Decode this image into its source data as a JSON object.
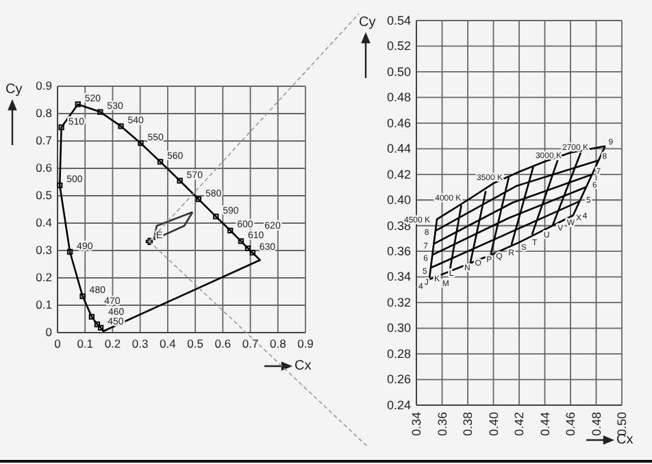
{
  "chart_data": [
    {
      "type": "line",
      "xlabel": "Cx",
      "ylabel": "Cy",
      "xlim": [
        0,
        0.9
      ],
      "ylim": [
        0,
        0.9
      ],
      "xticks": [
        0,
        0.1,
        0.2,
        0.3,
        0.4,
        0.5,
        0.6,
        0.7,
        0.8,
        0.9
      ],
      "yticks": [
        0,
        0.1,
        0.2,
        0.3,
        0.4,
        0.5,
        0.6,
        0.7,
        0.8,
        0.9
      ],
      "grid": true,
      "series": [
        {
          "color": "#000000",
          "marker": "square",
          "x": [
            0.157,
            0.144,
            0.124,
            0.091,
            0.045,
            0.008,
            0.014,
            0.074,
            0.155,
            0.23,
            0.302,
            0.373,
            0.444,
            0.512,
            0.575,
            0.627,
            0.666,
            0.691,
            0.708
          ],
          "values": [
            0.018,
            0.03,
            0.058,
            0.133,
            0.295,
            0.538,
            0.75,
            0.834,
            0.806,
            0.754,
            0.692,
            0.624,
            0.555,
            0.487,
            0.424,
            0.373,
            0.334,
            0.308,
            0.292
          ]
        },
        {
          "color": "#000000",
          "marker": "none",
          "x": [
            0.708,
            0.735,
            0.166,
            0.157
          ],
          "values": [
            0.292,
            0.265,
            0.005,
            0.018
          ]
        },
        {
          "color": "#333333",
          "marker": "none",
          "x": [
            0.35,
            0.36,
            0.49
          ],
          "values": [
            0.34,
            0.39,
            0.44
          ]
        },
        {
          "color": "#333333",
          "marker": "none",
          "x": [
            0.49,
            0.46,
            0.35
          ],
          "values": [
            0.44,
            0.39,
            0.34
          ]
        },
        {
          "type": "scatter",
          "color": "#000000",
          "marker": "cross",
          "x": [
            0.333
          ],
          "values": [
            0.333
          ]
        }
      ],
      "annotations": [
        {
          "text": "450",
          "x": 0.157,
          "y": 0.018
        },
        {
          "text": "460",
          "x": 0.144,
          "y": 0.03
        },
        {
          "text": "470",
          "x": 0.124,
          "y": 0.058
        },
        {
          "text": "480",
          "x": 0.091,
          "y": 0.133
        },
        {
          "text": "490",
          "x": 0.045,
          "y": 0.295
        },
        {
          "text": "500",
          "x": 0.008,
          "y": 0.538
        },
        {
          "text": "510",
          "x": 0.014,
          "y": 0.75
        },
        {
          "text": "520",
          "x": 0.074,
          "y": 0.834
        },
        {
          "text": "530",
          "x": 0.155,
          "y": 0.806
        },
        {
          "text": "540",
          "x": 0.23,
          "y": 0.754
        },
        {
          "text": "550",
          "x": 0.302,
          "y": 0.692
        },
        {
          "text": "560",
          "x": 0.373,
          "y": 0.624
        },
        {
          "text": "570",
          "x": 0.444,
          "y": 0.555
        },
        {
          "text": "580",
          "x": 0.512,
          "y": 0.487
        },
        {
          "text": "590",
          "x": 0.575,
          "y": 0.424
        },
        {
          "text": "600",
          "x": 0.627,
          "y": 0.373
        },
        {
          "text": "610",
          "x": 0.666,
          "y": 0.334
        },
        {
          "text": "620",
          "x": 0.691,
          "y": 0.308
        },
        {
          "text": "630",
          "x": 0.708,
          "y": 0.292
        },
        {
          "text": "E",
          "x": 0.333,
          "y": 0.333
        }
      ]
    },
    {
      "type": "line",
      "xlabel": "Cx",
      "ylabel": "Cy",
      "xlim": [
        0.34,
        0.5
      ],
      "ylim": [
        0.24,
        0.54
      ],
      "xticks": [
        0.34,
        0.36,
        0.38,
        {
          "value": 0.4,
          "label": "0.40"
        },
        0.42,
        0.44,
        0.46,
        0.48,
        {
          "value": 0.5,
          "label": "0.50"
        }
      ],
      "yticks": [
        0.24,
        0.26,
        0.28,
        {
          "value": 0.3,
          "label": "0.30"
        },
        0.32,
        0.34,
        0.36,
        0.38,
        {
          "value": 0.4,
          "label": "0.40"
        },
        0.42,
        0.44,
        0.46,
        0.48,
        {
          "value": 0.5,
          "label": "0.50"
        },
        0.52,
        0.54
      ],
      "grid": true,
      "series": [
        {
          "color": "#000000",
          "marker": "none",
          "x": [
            0.35,
            0.356,
            0.38,
            0.4,
            0.42,
            0.44,
            0.46,
            0.487
          ],
          "values": [
            0.338,
            0.385,
            0.4,
            0.413,
            0.422,
            0.43,
            0.437,
            0.442
          ]
        },
        {
          "color": "#000000",
          "marker": "none",
          "x": [
            0.487,
            0.462,
            0.44,
            0.42,
            0.4,
            0.38,
            0.35
          ],
          "values": [
            0.442,
            0.388,
            0.377,
            0.367,
            0.358,
            0.35,
            0.338
          ]
        },
        {
          "color": "#000000",
          "marker": "none",
          "x": [
            0.351,
            0.409,
            0.467
          ],
          "values": [
            0.347,
            0.373,
            0.399
          ]
        },
        {
          "color": "#000000",
          "marker": "none",
          "x": [
            0.352,
            0.412,
            0.472
          ],
          "values": [
            0.357,
            0.386,
            0.41
          ]
        },
        {
          "color": "#000000",
          "marker": "none",
          "x": [
            0.354,
            0.415,
            0.477
          ],
          "values": [
            0.366,
            0.398,
            0.42
          ]
        },
        {
          "color": "#000000",
          "marker": "none",
          "x": [
            0.355,
            0.418,
            0.482
          ],
          "values": [
            0.376,
            0.411,
            0.431
          ]
        },
        {
          "color": "#000000",
          "marker": "none",
          "x": [
            0.366,
            0.375
          ],
          "values": [
            0.345,
            0.396
          ]
        },
        {
          "color": "#000000",
          "marker": "none",
          "x": [
            0.382,
            0.394
          ],
          "values": [
            0.351,
            0.407
          ]
        },
        {
          "color": "#000000",
          "marker": "none",
          "x": [
            0.398,
            0.412
          ],
          "values": [
            0.358,
            0.418
          ]
        },
        {
          "color": "#000000",
          "marker": "none",
          "x": [
            0.414,
            0.431
          ],
          "values": [
            0.365,
            0.426
          ]
        },
        {
          "color": "#000000",
          "marker": "none",
          "x": [
            0.43,
            0.45
          ],
          "values": [
            0.373,
            0.431
          ]
        },
        {
          "color": "#000000",
          "marker": "none",
          "x": [
            0.446,
            0.468
          ],
          "values": [
            0.38,
            0.437
          ]
        }
      ],
      "annotations": [
        {
          "text": "4500 K",
          "x": 0.356,
          "y": 0.385
        },
        {
          "text": "4000 K",
          "x": 0.38,
          "y": 0.4
        },
        {
          "text": "3500 K",
          "x": 0.4,
          "y": 0.413
        },
        {
          "text": "3000 K",
          "x": 0.44,
          "y": 0.43
        },
        {
          "text": "2700 K",
          "x": 0.46,
          "y": 0.437
        },
        {
          "text": "J",
          "x": 0.352,
          "y": 0.339
        },
        {
          "text": "K",
          "x": 0.36,
          "y": 0.342
        },
        {
          "text": "L",
          "x": 0.371,
          "y": 0.3464
        },
        {
          "text": "M",
          "x": 0.375,
          "y": 0.348
        },
        {
          "text": "N",
          "x": 0.383,
          "y": 0.351
        },
        {
          "text": "O",
          "x": 0.391,
          "y": 0.355
        },
        {
          "text": "P",
          "x": 0.399,
          "y": 0.358
        },
        {
          "text": "Q",
          "x": 0.406,
          "y": 0.361
        },
        {
          "text": "R",
          "x": 0.414,
          "y": 0.364
        },
        {
          "text": "S",
          "x": 0.422,
          "y": 0.368
        },
        {
          "text": "T",
          "x": 0.429,
          "y": 0.371
        },
        {
          "text": "U",
          "x": 0.437,
          "y": 0.3755
        },
        {
          "text": "V",
          "x": 0.445,
          "y": 0.3795
        },
        {
          "text": "W",
          "x": 0.452,
          "y": 0.383
        },
        {
          "text": "X",
          "x": 0.459,
          "y": 0.3865
        },
        {
          "text": "4",
          "x": 0.35,
          "y": 0.338
        },
        {
          "text": "5",
          "x": 0.351,
          "y": 0.347
        },
        {
          "text": "6",
          "x": 0.352,
          "y": 0.357
        },
        {
          "text": "7",
          "x": 0.354,
          "y": 0.366
        },
        {
          "text": "8",
          "x": 0.355,
          "y": 0.376
        },
        {
          "text": "4",
          "x": 0.462,
          "y": 0.388
        },
        {
          "text": "5",
          "x": 0.467,
          "y": 0.399
        },
        {
          "text": "6",
          "x": 0.472,
          "y": 0.41
        },
        {
          "text": "7",
          "x": 0.477,
          "y": 0.42
        },
        {
          "text": "8",
          "x": 0.482,
          "y": 0.431
        },
        {
          "text": "9",
          "x": 0.487,
          "y": 0.442
        }
      ]
    }
  ]
}
